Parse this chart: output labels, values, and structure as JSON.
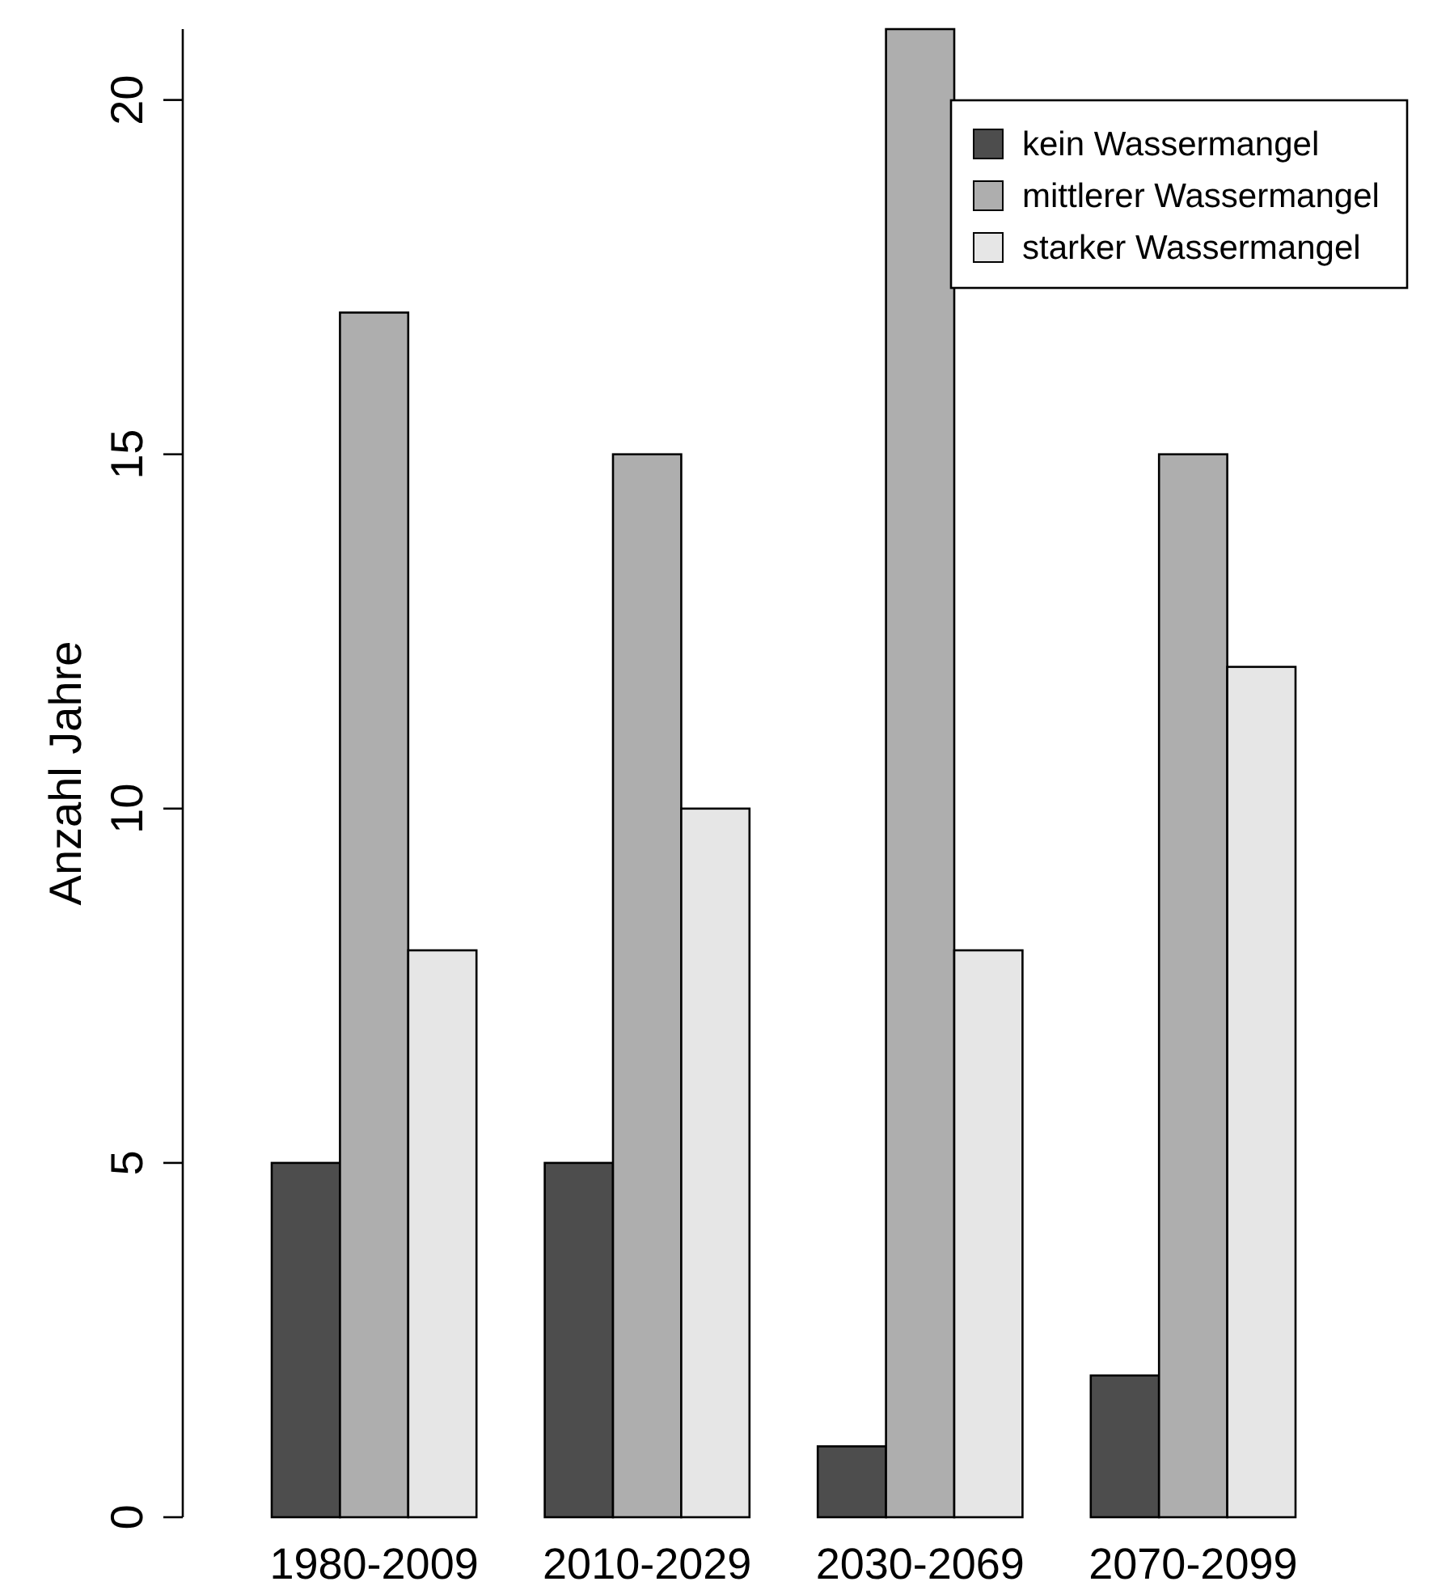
{
  "chart_data": {
    "type": "bar",
    "ylabel": "Anzahl Jahre",
    "categories": [
      "1980-2009",
      "2010-2029",
      "2030-2069",
      "2070-2099"
    ],
    "series": [
      {
        "name": "kein Wassermangel",
        "color": "#4d4d4d",
        "values": [
          5,
          5,
          1,
          2
        ]
      },
      {
        "name": "mittlerer Wassermangel",
        "color": "#aeaeae",
        "values": [
          17,
          15,
          21,
          15
        ]
      },
      {
        "name": "starker Wassermangel",
        "color": "#e6e6e6",
        "values": [
          8,
          10,
          8,
          12
        ]
      }
    ],
    "ylim": [
      0,
      21
    ],
    "yticks": [
      0,
      5,
      10,
      15,
      20
    ],
    "legend": "top right",
    "grid": false
  }
}
